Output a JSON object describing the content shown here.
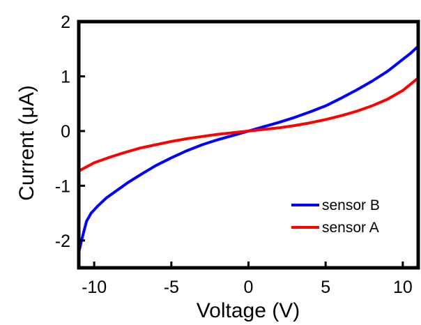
{
  "chart_data": {
    "type": "line",
    "title": "",
    "xlabel": "Voltage (V)",
    "ylabel": "Current (μA)",
    "xlim": [
      -11,
      11
    ],
    "ylim": [
      -2.5,
      2
    ],
    "xticks": [
      -10,
      -5,
      0,
      5,
      10
    ],
    "xtick_labels": [
      "-10",
      "-5",
      "0",
      "5",
      "10"
    ],
    "yticks": [
      -2,
      -1,
      0,
      1,
      2
    ],
    "ytick_labels": [
      "-2",
      "-1",
      "0",
      "1",
      "2"
    ],
    "grid": false,
    "legend_position": "bottom-right",
    "series": [
      {
        "name": "sensor B",
        "color": "#0000ff",
        "x": [
          -11,
          -10.8,
          -10.5,
          -10.2,
          -9.8,
          -9.2,
          -8.5,
          -7.8,
          -7,
          -6,
          -5,
          -4,
          -3,
          -2,
          -1,
          0,
          1,
          2,
          3,
          4,
          5,
          6,
          7,
          8,
          9,
          9.5,
          10,
          10.5,
          11
        ],
        "y": [
          -2.22,
          -1.98,
          -1.65,
          -1.5,
          -1.38,
          -1.22,
          -1.08,
          -0.94,
          -0.8,
          -0.63,
          -0.49,
          -0.36,
          -0.25,
          -0.16,
          -0.08,
          0,
          0.08,
          0.16,
          0.25,
          0.35,
          0.46,
          0.6,
          0.75,
          0.91,
          1.09,
          1.2,
          1.31,
          1.42,
          1.55
        ]
      },
      {
        "name": "sensor A",
        "color": "#ff0000",
        "x": [
          -11,
          -10,
          -9,
          -8,
          -7,
          -6,
          -5,
          -4,
          -3,
          -2,
          -1,
          0,
          1,
          2,
          3,
          4,
          5,
          6,
          7,
          8,
          9,
          10,
          11
        ],
        "y": [
          -0.73,
          -0.58,
          -0.48,
          -0.39,
          -0.31,
          -0.25,
          -0.19,
          -0.14,
          -0.1,
          -0.06,
          -0.03,
          0,
          0.03,
          0.06,
          0.1,
          0.15,
          0.21,
          0.28,
          0.36,
          0.46,
          0.58,
          0.74,
          0.97
        ]
      }
    ],
    "legend_order": [
      "sensor B",
      "sensor A"
    ]
  }
}
